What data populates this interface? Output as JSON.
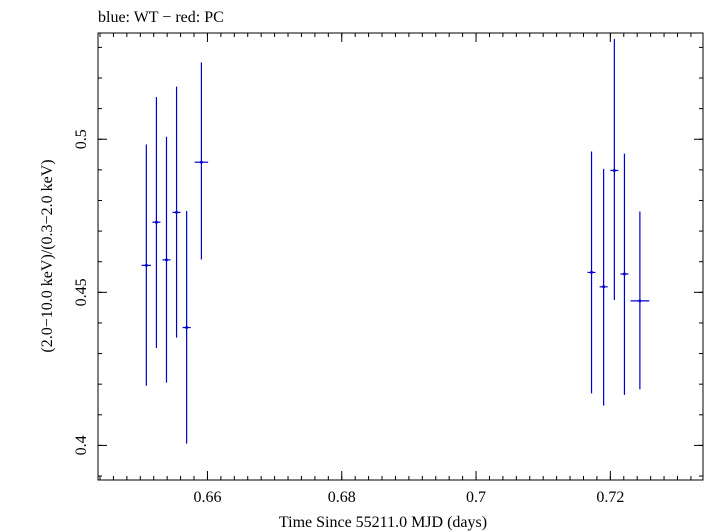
{
  "chart_data": {
    "type": "scatter",
    "title": "blue: WT − red: PC",
    "xlabel": "Time Since 55211.0 MJD (days)",
    "ylabel": "(2.0−10.0 keV)/(0.3−2.0 keV)",
    "xlim": [
      0.6437,
      0.7338
    ],
    "ylim": [
      0.3887,
      0.5347
    ],
    "x_ticks": [
      0.66,
      0.68,
      0.7,
      0.72
    ],
    "x_tick_labels": [
      "0.66",
      "0.68",
      "0.7",
      "0.72"
    ],
    "y_ticks": [
      0.4,
      0.45,
      0.5
    ],
    "y_tick_labels": [
      "0.4",
      "0.45",
      "0.5"
    ],
    "grid": false,
    "legend": null,
    "series": [
      {
        "color": "#0000cc",
        "points": [
          {
            "x": 0.6509,
            "xerr": 0.0007,
            "y": 0.4588,
            "yerr_low": 0.0393,
            "yerr_high": 0.0395
          },
          {
            "x": 0.6524,
            "xerr": 0.0006,
            "y": 0.4729,
            "yerr_low": 0.0411,
            "yerr_high": 0.0409
          },
          {
            "x": 0.6539,
            "xerr": 0.0006,
            "y": 0.4606,
            "yerr_low": 0.0401,
            "yerr_high": 0.0402
          },
          {
            "x": 0.6554,
            "xerr": 0.0006,
            "y": 0.4761,
            "yerr_low": 0.0409,
            "yerr_high": 0.0411
          },
          {
            "x": 0.6569,
            "xerr": 0.0006,
            "y": 0.4385,
            "yerr_low": 0.0379,
            "yerr_high": 0.0381
          },
          {
            "x": 0.6591,
            "xerr": 0.001,
            "y": 0.4925,
            "yerr_low": 0.0318,
            "yerr_high": 0.0326
          },
          {
            "x": 0.7172,
            "xerr": 0.0006,
            "y": 0.4565,
            "yerr_low": 0.0395,
            "yerr_high": 0.0395
          },
          {
            "x": 0.719,
            "xerr": 0.0006,
            "y": 0.4518,
            "yerr_low": 0.0388,
            "yerr_high": 0.0385
          },
          {
            "x": 0.7206,
            "xerr": 0.0006,
            "y": 0.4898,
            "yerr_low": 0.0423,
            "yerr_high": 0.043
          },
          {
            "x": 0.7221,
            "xerr": 0.0006,
            "y": 0.456,
            "yerr_low": 0.0395,
            "yerr_high": 0.0393
          },
          {
            "x": 0.7244,
            "xerr": 0.0014,
            "y": 0.4472,
            "yerr_low": 0.0289,
            "yerr_high": 0.0292
          }
        ]
      }
    ]
  }
}
